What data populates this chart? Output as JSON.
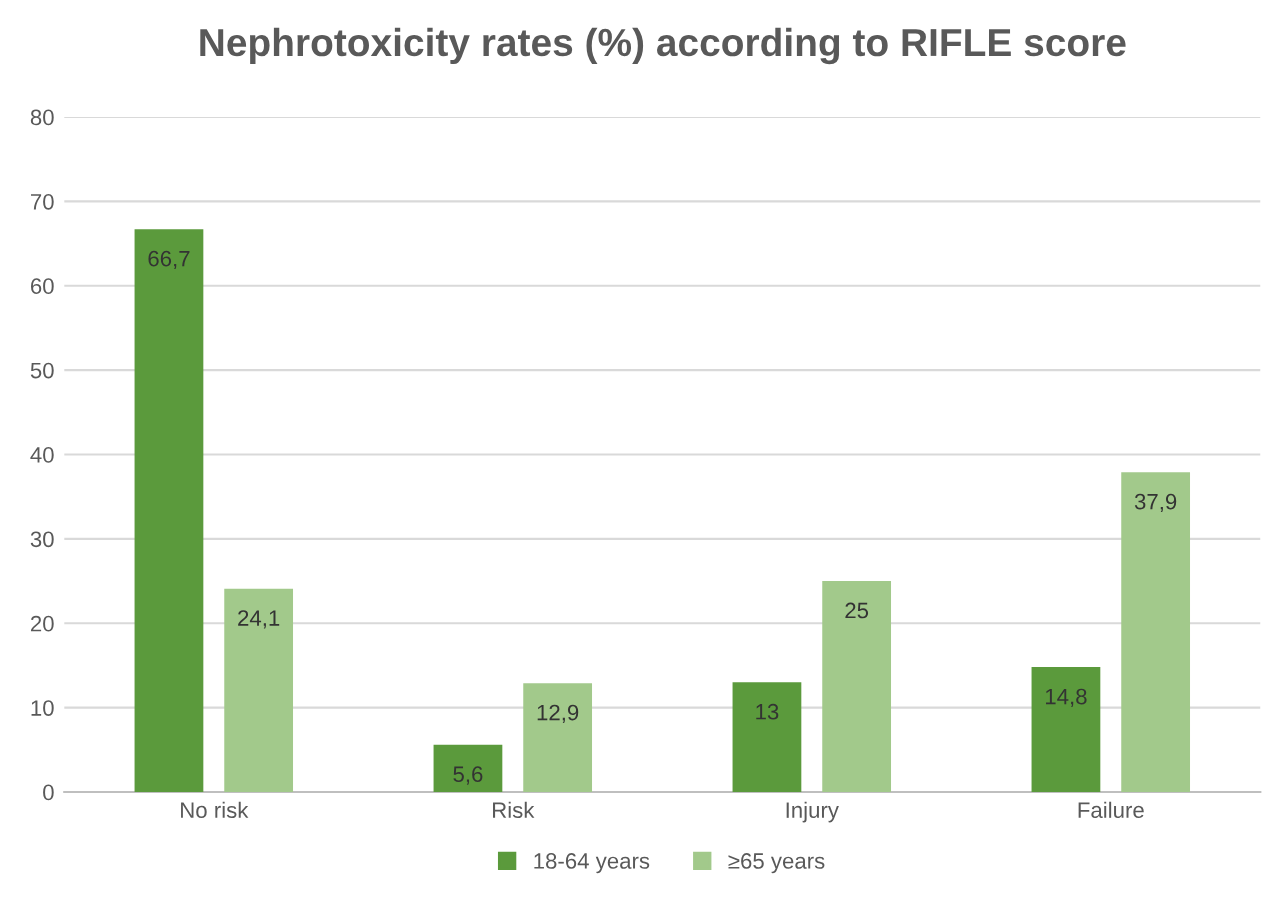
{
  "chart_data": {
    "type": "bar",
    "title": "Nephrotoxicity rates (%) according to RIFLE score",
    "categories": [
      "No risk",
      "Risk",
      "Injury",
      "Failure"
    ],
    "series": [
      {
        "name": "18-64 years",
        "color": "#5b9a3c",
        "values": [
          66.7,
          5.6,
          13,
          14.8
        ],
        "value_labels": [
          "66,7",
          "5,6",
          "13",
          "14,8"
        ]
      },
      {
        "name": "≥65 years",
        "color": "#a2c98b",
        "values": [
          24.1,
          12.9,
          25,
          37.9
        ],
        "value_labels": [
          "24,1",
          "12,9",
          "25",
          "37,9"
        ]
      }
    ],
    "ylim": [
      0,
      80
    ],
    "yticks": [
      0,
      10,
      20,
      30,
      40,
      50,
      60,
      70,
      80
    ],
    "grid": "y",
    "legend": "bottom"
  }
}
